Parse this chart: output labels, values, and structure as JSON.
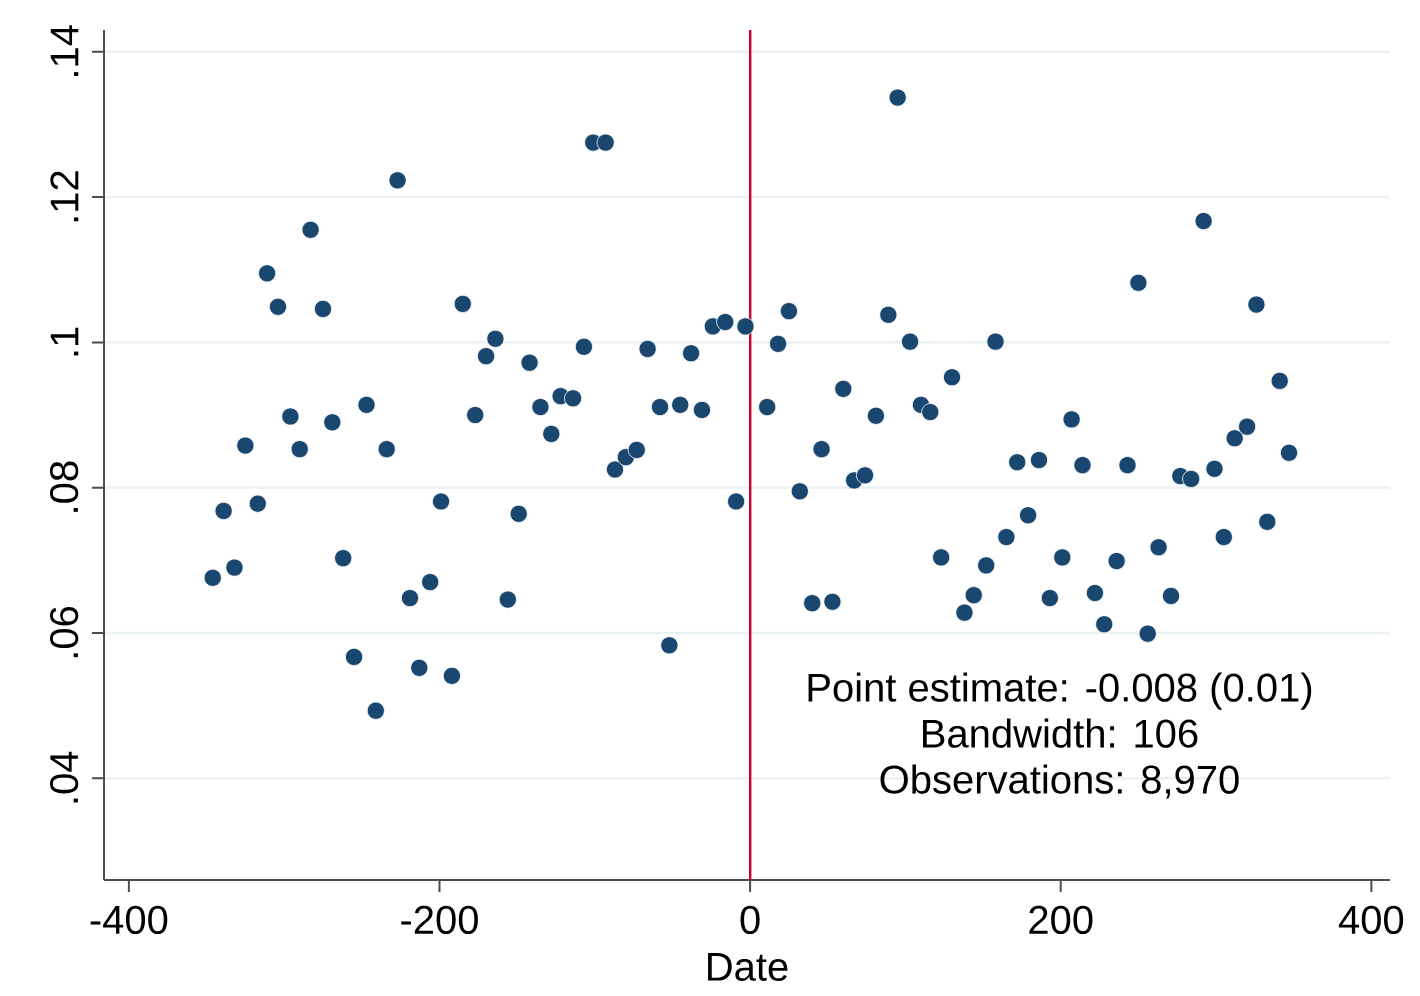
{
  "chart_data": {
    "type": "scatter",
    "xlabel": "Date",
    "color": "#1a476f",
    "marker": "circle",
    "grid": "y",
    "x": [
      -346,
      -339,
      -332,
      -325,
      -317,
      -311,
      -304,
      -296,
      -290,
      -283,
      -275,
      -269,
      -262,
      -255,
      -247,
      -241,
      -234,
      -227,
      -219,
      -213,
      -206,
      -199,
      -192,
      -185,
      -177,
      -170,
      -164,
      -156,
      -149,
      -142,
      -135,
      -128,
      -122,
      -114,
      -107,
      -101,
      -93,
      -87,
      -80,
      -73,
      -66,
      -58,
      -52,
      -45,
      -38,
      -31,
      -24,
      -16,
      -9,
      -3,
      11,
      18,
      25,
      32,
      40,
      46,
      53,
      60,
      67,
      74,
      81,
      89,
      95,
      103,
      110,
      116,
      123,
      130,
      138,
      144,
      152,
      158,
      165,
      172,
      179,
      186,
      193,
      201,
      207,
      214,
      222,
      228,
      236,
      243,
      250,
      256,
      263,
      271,
      277,
      284,
      292,
      299,
      305,
      312,
      320,
      326,
      333,
      341,
      347
    ],
    "values": [
      0.0676,
      0.0768,
      0.069,
      0.0858,
      0.0778,
      0.1095,
      0.1049,
      0.0898,
      0.0853,
      0.1155,
      0.1046,
      0.089,
      0.0703,
      0.0567,
      0.0914,
      0.0493,
      0.0853,
      0.1223,
      0.0648,
      0.0552,
      0.067,
      0.0781,
      0.0541,
      0.1053,
      0.09,
      0.0981,
      0.1005,
      0.0646,
      0.0764,
      0.0972,
      0.0911,
      0.0874,
      0.0926,
      0.0923,
      0.0994,
      0.1275,
      0.1275,
      0.0825,
      0.0842,
      0.0852,
      0.0991,
      0.0911,
      0.0583,
      0.0914,
      0.0985,
      0.0907,
      0.1022,
      0.1028,
      0.0781,
      0.1022,
      0.0911,
      0.0998,
      0.1043,
      0.0795,
      0.0641,
      0.0853,
      0.0643,
      0.0936,
      0.081,
      0.0817,
      0.0899,
      0.1038,
      0.1337,
      0.1001,
      0.0914,
      0.0904,
      0.0704,
      0.0952,
      0.0628,
      0.0652,
      0.0693,
      0.1001,
      0.0732,
      0.0835,
      0.0762,
      0.0838,
      0.0648,
      0.0704,
      0.0894,
      0.0831,
      0.0655,
      0.0612,
      0.0699,
      0.0831,
      0.1082,
      0.0599,
      0.0718,
      0.0651,
      0.0816,
      0.0812,
      0.1167,
      0.0826,
      0.0732,
      0.0868,
      0.0884,
      0.1052,
      0.0753,
      0.0947,
      0.0848
    ],
    "xlim": [
      -416,
      412
    ],
    "ylim": [
      0.026,
      0.143
    ],
    "xticks": [
      -400,
      -200,
      0,
      200,
      400
    ],
    "yticks": [
      {
        "value": 0.04,
        "label": ".04"
      },
      {
        "value": 0.06,
        "label": ".06"
      },
      {
        "value": 0.08,
        "label": ".08"
      },
      {
        "value": 0.1,
        "label": ".1"
      },
      {
        "value": 0.12,
        "label": ".12"
      },
      {
        "value": 0.14,
        "label": ".14"
      }
    ],
    "ref_lines": [
      {
        "axis": "x",
        "value": 0,
        "color": "#c10534"
      }
    ],
    "annotations": [
      "Point estimate: -0.008 (0.01)",
      "Bandwidth: 106",
      "Observations: 8,970"
    ]
  }
}
